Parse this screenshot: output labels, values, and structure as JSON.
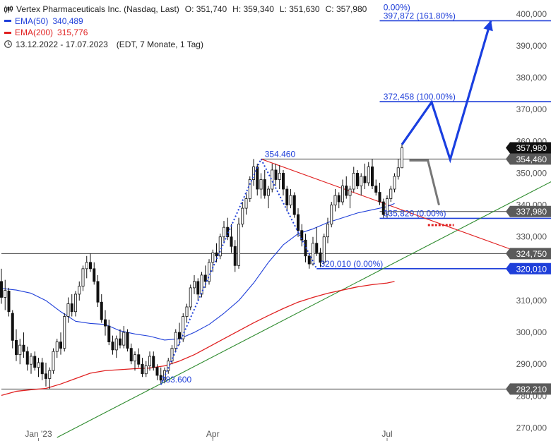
{
  "legend": {
    "title": "Vertex Pharmaceuticals Inc. (Nasdaq, Last)",
    "ohlc": {
      "o": "O: 351,740",
      "h": "H: 359,340",
      "l": "L: 351,630",
      "c": "C: 357,980"
    },
    "ema50": {
      "label": "EMA(50)",
      "value": "340,489",
      "color": "#1f3fd9"
    },
    "ema200": {
      "label": "EMA(200)",
      "value": "315,776",
      "color": "#e02020"
    },
    "range": "13.12.2022 - 17.07.2023",
    "period": "(EDT, 7 Monate, 1 Tag)"
  },
  "chart_data": {
    "type": "candlestick",
    "ylim": [
      267000,
      402000
    ],
    "xlim": [
      0,
      151
    ],
    "grid": false,
    "y_ticks": [
      "270,000",
      "280,000",
      "290,000",
      "300,000",
      "310,000",
      "320,000",
      "330,000",
      "340,000",
      "350,000",
      "360,000",
      "370,000",
      "380,000",
      "390,000",
      "400,000"
    ],
    "x_ticks": [
      {
        "label": "Jan '23",
        "x": 10
      },
      {
        "label": "Apr",
        "x": 57
      },
      {
        "label": "Jul",
        "x": 104
      }
    ],
    "colors": {
      "up": "#ffffff",
      "down": "#111111",
      "ema50": "#1f3fd9",
      "ema200": "#e02020",
      "trend": "#2e8b2e",
      "fib": "#1f3fd9",
      "resist": "#e02020"
    },
    "candles": [
      [
        316.0,
        320.0,
        309.0,
        311.0
      ],
      [
        311.0,
        316.5,
        307.0,
        313.2
      ],
      [
        313.0,
        314.0,
        305.0,
        306.5
      ],
      [
        306.0,
        307.0,
        295.0,
        297.5
      ],
      [
        297.5,
        301.0,
        291.0,
        293.0
      ],
      [
        293.0,
        298.0,
        290.0,
        296.0
      ],
      [
        296.0,
        300.0,
        292.0,
        294.0
      ],
      [
        294.0,
        295.5,
        288.0,
        290.0
      ],
      [
        290.0,
        293.5,
        287.0,
        292.5
      ],
      [
        292.5,
        294.0,
        288.0,
        289.0
      ],
      [
        289.0,
        292.0,
        286.0,
        290.5
      ],
      [
        290.5,
        292.0,
        285.0,
        287.0
      ],
      [
        287.0,
        290.5,
        283.0,
        285.5
      ],
      [
        285.5,
        289.0,
        282.3,
        288.0
      ],
      [
        288.0,
        295.0,
        287.0,
        294.0
      ],
      [
        294.0,
        298.0,
        292.0,
        297.0
      ],
      [
        297.0,
        300.0,
        293.0,
        295.0
      ],
      [
        295.0,
        306.0,
        294.0,
        305.0
      ],
      [
        305.0,
        311.0,
        303.0,
        309.0
      ],
      [
        309.0,
        312.0,
        305.0,
        306.5
      ],
      [
        306.5,
        313.0,
        305.0,
        312.0
      ],
      [
        312.0,
        316.0,
        310.0,
        314.5
      ],
      [
        314.5,
        321.0,
        313.0,
        320.0
      ],
      [
        320.0,
        324.0,
        317.0,
        322.0
      ],
      [
        322.0,
        324.8,
        319.0,
        320.0
      ],
      [
        320.0,
        322.0,
        315.0,
        316.0
      ],
      [
        316.0,
        318.0,
        308.0,
        309.5
      ],
      [
        309.5,
        312.0,
        303.0,
        304.0
      ],
      [
        304.0,
        307.0,
        299.0,
        302.0
      ],
      [
        302.0,
        304.0,
        296.0,
        297.0
      ],
      [
        297.0,
        299.0,
        293.0,
        294.5
      ],
      [
        294.5,
        299.0,
        292.0,
        298.0
      ],
      [
        298.0,
        301.0,
        295.0,
        296.0
      ],
      [
        296.0,
        302.0,
        295.0,
        300.0
      ],
      [
        300.0,
        301.0,
        294.0,
        295.0
      ],
      [
        295.0,
        296.5,
        290.0,
        291.0
      ],
      [
        291.0,
        294.0,
        288.0,
        293.0
      ],
      [
        293.0,
        295.0,
        289.0,
        290.0
      ],
      [
        290.0,
        292.0,
        286.0,
        287.0
      ],
      [
        287.0,
        291.0,
        286.0,
        289.5
      ],
      [
        289.5,
        294.0,
        288.0,
        292.5
      ],
      [
        292.5,
        294.0,
        288.0,
        289.0
      ],
      [
        289.0,
        290.0,
        285.0,
        286.5
      ],
      [
        286.5,
        289.0,
        283.6,
        285.0
      ],
      [
        285.0,
        289.0,
        284.0,
        288.0
      ],
      [
        288.0,
        292.0,
        287.0,
        291.0
      ],
      [
        291.0,
        296.0,
        290.0,
        295.0
      ],
      [
        295.0,
        301.0,
        294.0,
        300.0
      ],
      [
        300.0,
        303.0,
        296.0,
        298.0
      ],
      [
        298.0,
        306.0,
        297.0,
        305.0
      ],
      [
        305.0,
        309.0,
        303.0,
        308.0
      ],
      [
        308.0,
        315.0,
        307.0,
        314.0
      ],
      [
        314.0,
        318.0,
        312.0,
        316.0
      ],
      [
        316.0,
        317.0,
        310.0,
        312.0
      ],
      [
        312.0,
        319.0,
        311.0,
        318.0
      ],
      [
        318.0,
        321.0,
        314.0,
        316.0
      ],
      [
        316.0,
        323.0,
        315.0,
        322.0
      ],
      [
        322.0,
        326.0,
        319.0,
        325.0
      ],
      [
        325.0,
        328.0,
        322.0,
        324.0
      ],
      [
        324.0,
        331.0,
        323.0,
        330.0
      ],
      [
        330.0,
        335.0,
        328.0,
        333.0
      ],
      [
        333.0,
        336.0,
        329.0,
        330.0
      ],
      [
        330.0,
        334.0,
        325.0,
        327.0
      ],
      [
        327.0,
        329.0,
        319.0,
        321.0
      ],
      [
        321.0,
        336.0,
        320.0,
        334.0
      ],
      [
        334.0,
        341.0,
        333.0,
        339.0
      ],
      [
        339.0,
        344.0,
        337.0,
        342.0
      ],
      [
        342.0,
        349.0,
        341.0,
        348.0
      ],
      [
        348.0,
        354.46,
        346.0,
        352.0
      ],
      [
        352.0,
        353.0,
        343.0,
        345.0
      ],
      [
        345.0,
        350.0,
        342.0,
        348.0
      ],
      [
        348.0,
        351.0,
        342.0,
        343.0
      ],
      [
        343.0,
        346.0,
        339.0,
        345.0
      ],
      [
        345.0,
        353.0,
        344.0,
        351.0
      ],
      [
        351.0,
        353.0,
        346.0,
        348.0
      ],
      [
        348.0,
        352.5,
        345.0,
        350.0
      ],
      [
        350.0,
        351.0,
        343.0,
        345.0
      ],
      [
        345.0,
        346.0,
        338.0,
        340.0
      ],
      [
        340.0,
        345.0,
        339.0,
        343.0
      ],
      [
        343.0,
        344.0,
        336.0,
        337.0
      ],
      [
        337.0,
        339.0,
        330.0,
        332.0
      ],
      [
        332.0,
        334.0,
        327.0,
        329.0
      ],
      [
        329.0,
        331.0,
        322.0,
        324.0
      ],
      [
        324.0,
        325.0,
        320.01,
        321.5
      ],
      [
        321.5,
        330.0,
        321.0,
        328.0
      ],
      [
        328.0,
        333.0,
        324.0,
        325.0
      ],
      [
        325.0,
        326.5,
        320.5,
        322.0
      ],
      [
        322.0,
        331.0,
        321.5,
        330.0
      ],
      [
        330.0,
        336.0,
        328.0,
        334.0
      ],
      [
        334.0,
        341.0,
        333.0,
        340.0
      ],
      [
        340.0,
        345.0,
        338.0,
        343.0
      ],
      [
        343.0,
        344.0,
        339.0,
        341.0
      ],
      [
        341.0,
        348.0,
        340.0,
        346.0
      ],
      [
        346.0,
        349.0,
        342.0,
        343.0
      ],
      [
        343.0,
        346.0,
        339.0,
        345.0
      ],
      [
        345.0,
        352.0,
        344.0,
        350.0
      ],
      [
        350.0,
        351.0,
        345.0,
        346.0
      ],
      [
        346.0,
        350.0,
        343.0,
        349.0
      ],
      [
        349.0,
        353.0,
        345.0,
        347.0
      ],
      [
        347.0,
        353.5,
        346.0,
        352.0
      ],
      [
        352.0,
        354.5,
        345.0,
        346.0
      ],
      [
        346.0,
        348.0,
        343.0,
        344.0
      ],
      [
        344.0,
        347.0,
        340.0,
        341.0
      ],
      [
        341.0,
        342.0,
        336.0,
        337.0
      ],
      [
        337.0,
        343.0,
        336.0,
        342.0
      ],
      [
        342.0,
        346.0,
        341.0,
        345.0
      ],
      [
        345.0,
        350.0,
        344.0,
        349.0
      ],
      [
        349.0,
        354.5,
        348.0,
        351.7
      ],
      [
        351.7,
        359.34,
        351.6,
        357.98
      ]
    ],
    "ema50": [
      [
        0,
        313.8
      ],
      [
        4,
        313.3
      ],
      [
        8,
        312.3
      ],
      [
        12,
        310.0
      ],
      [
        16,
        306.5
      ],
      [
        20,
        303.5
      ],
      [
        24,
        302.8
      ],
      [
        28,
        302.5
      ],
      [
        32,
        300.5
      ],
      [
        36,
        299.5
      ],
      [
        40,
        298.8
      ],
      [
        44,
        297.6
      ],
      [
        48,
        298.0
      ],
      [
        52,
        300.0
      ],
      [
        56,
        302.5
      ],
      [
        60,
        306.0
      ],
      [
        64,
        310.0
      ],
      [
        68,
        315.5
      ],
      [
        72,
        322.0
      ],
      [
        76,
        327.5
      ],
      [
        80,
        331.0
      ],
      [
        84,
        332.5
      ],
      [
        88,
        334.5
      ],
      [
        92,
        336.0
      ],
      [
        96,
        337.5
      ],
      [
        100,
        338.5
      ],
      [
        104,
        339.5
      ],
      [
        106,
        340.5
      ]
    ],
    "ema200": [
      [
        0,
        280.2
      ],
      [
        4,
        281.5
      ],
      [
        8,
        282.0
      ],
      [
        12,
        282.4
      ],
      [
        16,
        283.8
      ],
      [
        20,
        285.5
      ],
      [
        24,
        287.2
      ],
      [
        28,
        288.0
      ],
      [
        32,
        288.3
      ],
      [
        36,
        288.6
      ],
      [
        40,
        288.8
      ],
      [
        44,
        289.5
      ],
      [
        48,
        291.0
      ],
      [
        52,
        293.0
      ],
      [
        56,
        295.5
      ],
      [
        60,
        298.0
      ],
      [
        64,
        300.5
      ],
      [
        68,
        303.0
      ],
      [
        72,
        305.3
      ],
      [
        76,
        307.5
      ],
      [
        80,
        309.5
      ],
      [
        84,
        311.0
      ],
      [
        88,
        312.3
      ],
      [
        92,
        313.3
      ],
      [
        96,
        314.3
      ],
      [
        100,
        315.0
      ],
      [
        104,
        315.5
      ],
      [
        106,
        316.0
      ]
    ],
    "levels": [
      {
        "value": 282.21,
        "label": "282,210",
        "color": "#444444",
        "x0": 0
      },
      {
        "value": 324.75,
        "label": "324,750",
        "color": "#444444",
        "x0": 0
      },
      {
        "value": 320.01,
        "label": "320,010",
        "color": "#1f3fd9",
        "x0": 85
      },
      {
        "value": 335.82,
        "label": "",
        "color": "#1f3fd9",
        "x0": 102
      },
      {
        "value": 337.98,
        "label": "337,980",
        "color": "#444444",
        "x0": 102
      },
      {
        "value": 354.46,
        "label": "354,460",
        "color": "#444444",
        "x0": 70
      },
      {
        "value": 372.458,
        "label": "",
        "color": "#1f3fd9",
        "x0": 102
      },
      {
        "value": 397.872,
        "label": "",
        "color": "#1f3fd9",
        "x0": 102
      }
    ],
    "last_price": {
      "value": 357.98,
      "label": "357,980"
    },
    "annotations": [
      {
        "text": "354.460",
        "x": 71,
        "y": 354.46
      },
      {
        "text": "283.600",
        "x": 43,
        "y": 283.6
      },
      {
        "text": "320,010 (0.00%)",
        "x": 86,
        "y": 320.01
      },
      {
        "text": "335,820 (0.00%)",
        "x": 103,
        "y": 335.82
      },
      {
        "text": "372,458 (100.00%)",
        "x": 103,
        "y": 372.458
      },
      {
        "text": "397,872 (161.80%)",
        "x": 103,
        "y": 397.872
      },
      {
        "text": "0.00%)",
        "x": 103,
        "y": 400.5
      }
    ],
    "zigzag": [
      [
        43,
        283.6
      ],
      [
        70,
        354.46
      ],
      [
        85,
        320.01
      ]
    ],
    "trendline": [
      [
        15,
        267.0
      ],
      [
        151,
        349.0
      ]
    ],
    "resistance": [
      [
        70,
        354.46
      ],
      [
        140,
        325.0
      ]
    ],
    "projection_blue": [
      [
        108,
        359.0
      ],
      [
        116,
        372.3
      ],
      [
        121,
        354.3
      ],
      [
        132,
        398.0
      ]
    ],
    "projection_gray": [
      [
        110,
        354.0
      ],
      [
        115,
        354.0
      ],
      [
        118,
        340.0
      ]
    ],
    "projection_red_dotted": [
      [
        115,
        333.7
      ],
      [
        122,
        333.7
      ]
    ]
  }
}
